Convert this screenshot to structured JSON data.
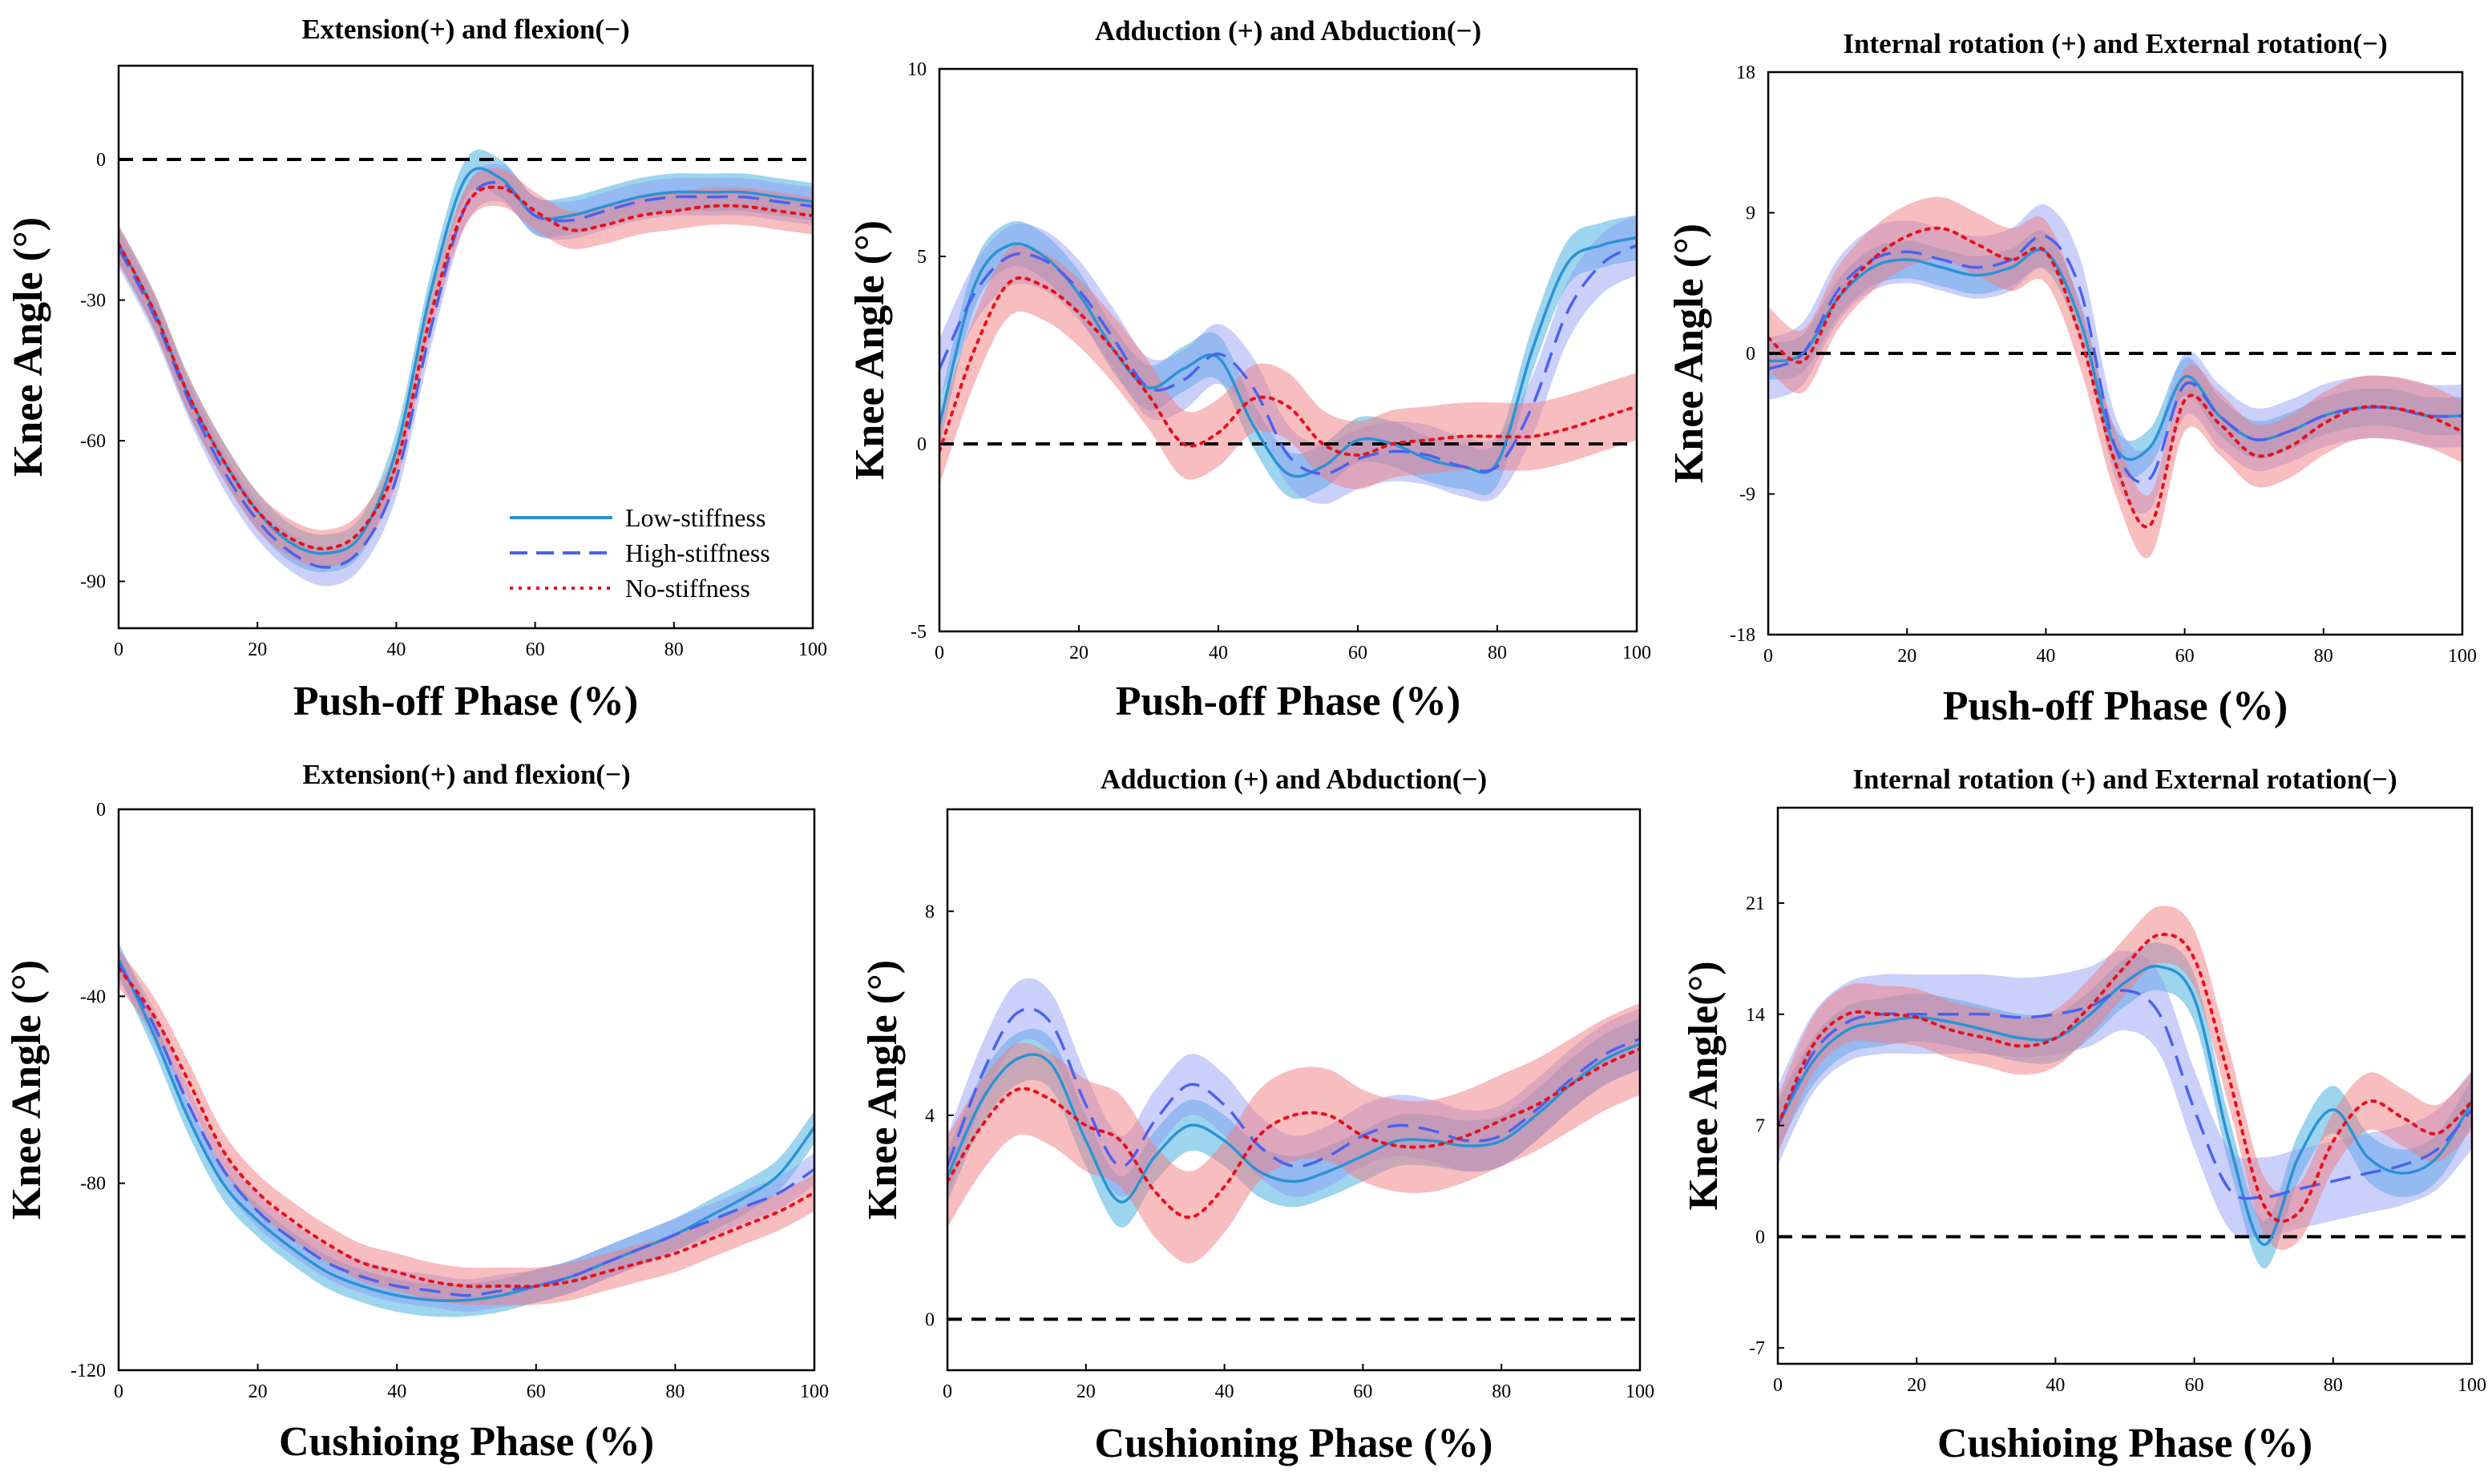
{
  "colors": {
    "low": "#2a93d5",
    "low_band": "#4fb2e0",
    "high": "#4a62f0",
    "high_band": "#8a96f5",
    "no": "#e8101a",
    "no_band": "#f27b80",
    "zero_line": "#000000"
  },
  "legend": {
    "entries": [
      {
        "label": "Low-stiffness",
        "style": "solid",
        "color": "#2a93d5"
      },
      {
        "label": "High-stiffness",
        "style": "dashed",
        "color": "#4a62f0"
      },
      {
        "label": "No-stiffness",
        "style": "dotted",
        "color": "#e8101a"
      }
    ]
  },
  "chart_data": [
    {
      "type": "line",
      "title": "Extension(+) and flexion(−)",
      "xlabel": "Push-off Phase (%)",
      "ylabel": "Knee Angle (°)",
      "xlim": [
        0,
        100
      ],
      "ylim": [
        -100,
        20
      ],
      "xticks": [
        0,
        20,
        40,
        60,
        80,
        100
      ],
      "yticks": [
        0,
        -30,
        -60,
        -90
      ],
      "ytick_labels": [
        "0",
        "-30",
        "-60",
        "-90"
      ],
      "zero_line": 0,
      "legend": true,
      "series": [
        {
          "name": "Low-stiffness",
          "band": 4,
          "x": [
            0,
            5,
            10,
            15,
            20,
            25,
            30,
            35,
            40,
            45,
            50,
            55,
            60,
            65,
            70,
            75,
            80,
            85,
            90,
            95,
            100
          ],
          "values": [
            -18,
            -32,
            -50,
            -64,
            -75,
            -82,
            -84,
            -80,
            -62,
            -28,
            -4,
            -4,
            -12,
            -12,
            -10,
            -8,
            -7,
            -7,
            -7,
            -8,
            -9
          ]
        },
        {
          "name": "High-stiffness",
          "band": 4,
          "x": [
            0,
            5,
            10,
            15,
            20,
            25,
            30,
            35,
            40,
            45,
            50,
            55,
            60,
            65,
            70,
            75,
            80,
            85,
            90,
            95,
            100
          ],
          "values": [
            -19,
            -33,
            -51,
            -66,
            -77,
            -84,
            -87,
            -83,
            -68,
            -36,
            -10,
            -5,
            -12,
            -13,
            -11,
            -9,
            -8,
            -8,
            -8,
            -9,
            -10
          ]
        },
        {
          "name": "No-stiffness",
          "band": 4,
          "x": [
            0,
            5,
            10,
            15,
            20,
            25,
            30,
            35,
            40,
            45,
            50,
            55,
            60,
            65,
            70,
            75,
            80,
            85,
            90,
            95,
            100
          ],
          "values": [
            -18,
            -32,
            -50,
            -64,
            -75,
            -81,
            -83,
            -79,
            -65,
            -33,
            -10,
            -6,
            -11,
            -15,
            -14,
            -12,
            -11,
            -10,
            -10,
            -11,
            -12
          ]
        }
      ]
    },
    {
      "type": "line",
      "title": "Adduction (+) and Abduction(−)",
      "xlabel": "Push-off Phase (%)",
      "ylabel": "Knee Angle (°)",
      "xlim": [
        0,
        100
      ],
      "ylim": [
        -5,
        10
      ],
      "xticks": [
        0,
        20,
        40,
        60,
        80,
        100
      ],
      "yticks": [
        10,
        5,
        0,
        -5
      ],
      "ytick_labels": [
        "10",
        "5",
        "0",
        "-5"
      ],
      "zero_line": 0,
      "legend": false,
      "series": [
        {
          "name": "Low-stiffness",
          "band": 0.6,
          "x": [
            0,
            5,
            10,
            15,
            20,
            25,
            30,
            35,
            40,
            45,
            50,
            55,
            60,
            65,
            70,
            75,
            80,
            85,
            90,
            95,
            100
          ],
          "values": [
            0.5,
            4.2,
            5.3,
            5.0,
            4.0,
            2.5,
            1.5,
            2.0,
            2.3,
            0.5,
            -0.8,
            -0.6,
            0.1,
            0.0,
            -0.4,
            -0.6,
            -0.5,
            2.5,
            4.8,
            5.3,
            5.5
          ]
        },
        {
          "name": "High-stiffness",
          "band": 0.8,
          "x": [
            0,
            5,
            10,
            15,
            20,
            25,
            30,
            35,
            40,
            45,
            50,
            55,
            60,
            65,
            70,
            75,
            80,
            85,
            90,
            95,
            100
          ],
          "values": [
            2.0,
            4.0,
            5.0,
            4.9,
            4.1,
            2.8,
            1.5,
            1.7,
            2.4,
            1.5,
            -0.3,
            -0.8,
            -0.4,
            -0.2,
            -0.3,
            -0.6,
            -0.6,
            1.0,
            3.5,
            4.8,
            5.3
          ]
        },
        {
          "name": "No-stiffness",
          "band": 0.9,
          "x": [
            0,
            5,
            10,
            15,
            20,
            25,
            30,
            35,
            40,
            45,
            50,
            55,
            60,
            65,
            70,
            75,
            80,
            85,
            90,
            95,
            100
          ],
          "values": [
            -0.2,
            2.5,
            4.3,
            4.2,
            3.5,
            2.5,
            1.3,
            0.0,
            0.3,
            1.2,
            1.0,
            0.0,
            -0.3,
            0.0,
            0.1,
            0.2,
            0.2,
            0.2,
            0.4,
            0.7,
            1.0
          ]
        }
      ]
    },
    {
      "type": "line",
      "title": "Internal rotation (+) and External rotation(−)",
      "xlabel": "Push-off Phase (%)",
      "ylabel": "Knee Angle (°)",
      "xlim": [
        0,
        100
      ],
      "ylim": [
        -18,
        18
      ],
      "xticks": [
        0,
        20,
        40,
        60,
        80,
        100
      ],
      "yticks": [
        18,
        9,
        0,
        -9,
        -18
      ],
      "ytick_labels": [
        "18",
        "9",
        "0",
        "-9",
        "-18"
      ],
      "zero_line": 0,
      "legend": false,
      "series": [
        {
          "name": "Low-stiffness",
          "band": 1.2,
          "x": [
            0,
            5,
            10,
            15,
            20,
            25,
            30,
            35,
            40,
            45,
            50,
            55,
            60,
            65,
            70,
            75,
            80,
            85,
            90,
            95,
            100
          ],
          "values": [
            -0.5,
            0.0,
            3.5,
            5.5,
            6.0,
            5.5,
            5.0,
            5.5,
            6.5,
            2.0,
            -6.0,
            -6.0,
            -1.5,
            -4.0,
            -5.5,
            -5.0,
            -4.0,
            -3.5,
            -3.5,
            -4.0,
            -4.0
          ]
        },
        {
          "name": "High-stiffness",
          "band": 2.0,
          "x": [
            0,
            5,
            10,
            15,
            20,
            25,
            30,
            35,
            40,
            45,
            50,
            55,
            60,
            65,
            70,
            75,
            80,
            85,
            90,
            95,
            100
          ],
          "values": [
            -1.0,
            0.0,
            4.0,
            6.0,
            6.5,
            6.0,
            5.5,
            6.0,
            7.5,
            4.0,
            -6.0,
            -8.0,
            -2.0,
            -4.0,
            -5.5,
            -5.0,
            -4.0,
            -3.5,
            -3.5,
            -4.0,
            -4.0
          ]
        },
        {
          "name": "No-stiffness",
          "band": 2.0,
          "x": [
            0,
            5,
            10,
            15,
            20,
            25,
            30,
            35,
            40,
            45,
            50,
            55,
            60,
            65,
            70,
            75,
            80,
            85,
            90,
            95,
            100
          ],
          "values": [
            1.0,
            -0.5,
            3.5,
            6.0,
            7.5,
            8.0,
            7.0,
            6.0,
            6.5,
            1.0,
            -7.0,
            -11.0,
            -3.0,
            -4.5,
            -6.5,
            -6.0,
            -4.5,
            -3.5,
            -3.5,
            -4.0,
            -5.0
          ]
        }
      ]
    },
    {
      "type": "line",
      "title": "Extension(+) and flexion(−)",
      "xlabel": "Cushioing Phase (%)",
      "ylabel": "Knee Angle (°)",
      "xlim": [
        0,
        100
      ],
      "ylim": [
        -120,
        0
      ],
      "xticks": [
        0,
        20,
        40,
        60,
        80,
        100
      ],
      "yticks": [
        0,
        -40,
        -80,
        -120
      ],
      "ytick_labels": [
        "0",
        "-40",
        "-80",
        "-120"
      ],
      "zero_line": null,
      "legend": false,
      "series": [
        {
          "name": "Low-stiffness",
          "band": 3.5,
          "x": [
            0,
            5,
            10,
            15,
            20,
            25,
            30,
            35,
            40,
            45,
            50,
            55,
            60,
            65,
            70,
            75,
            80,
            85,
            90,
            95,
            100
          ],
          "values": [
            -32,
            -48,
            -66,
            -80,
            -88,
            -94,
            -99,
            -102,
            -104,
            -105,
            -105,
            -104,
            -102,
            -100,
            -97,
            -94,
            -91,
            -87,
            -83,
            -78,
            -68
          ]
        },
        {
          "name": "High-stiffness",
          "band": 3.5,
          "x": [
            0,
            5,
            10,
            15,
            20,
            25,
            30,
            35,
            40,
            45,
            50,
            55,
            60,
            65,
            70,
            75,
            80,
            85,
            90,
            95,
            100
          ],
          "values": [
            -33,
            -46,
            -63,
            -77,
            -86,
            -92,
            -97,
            -100,
            -102,
            -103,
            -104,
            -103,
            -102,
            -100,
            -97,
            -94,
            -91,
            -88,
            -85,
            -82,
            -77
          ]
        },
        {
          "name": "No-stiffness",
          "band": 4,
          "x": [
            0,
            5,
            10,
            15,
            20,
            25,
            30,
            35,
            40,
            45,
            50,
            55,
            60,
            65,
            70,
            75,
            80,
            85,
            90,
            95,
            100
          ],
          "values": [
            -34,
            -44,
            -58,
            -73,
            -82,
            -88,
            -93,
            -97,
            -99,
            -101,
            -102,
            -102,
            -102,
            -101,
            -99,
            -97,
            -95,
            -92,
            -89,
            -86,
            -82
          ]
        }
      ]
    },
    {
      "type": "line",
      "title": "Adduction (+) and Abduction(−)",
      "xlabel": "Cushioning Phase (%)",
      "ylabel": "Knee Angle (°)",
      "xlim": [
        0,
        100
      ],
      "ylim": [
        -1,
        10
      ],
      "xticks": [
        0,
        20,
        40,
        60,
        80,
        100
      ],
      "yticks": [
        8,
        4,
        0
      ],
      "ytick_labels": [
        "8",
        "4",
        "0"
      ],
      "zero_line": 0,
      "legend": false,
      "series": [
        {
          "name": "Low-stiffness",
          "band": 0.5,
          "x": [
            0,
            5,
            10,
            15,
            20,
            25,
            30,
            35,
            40,
            45,
            50,
            55,
            60,
            65,
            70,
            75,
            80,
            85,
            90,
            95,
            100
          ],
          "values": [
            2.8,
            4.3,
            5.1,
            5.0,
            3.5,
            2.3,
            3.2,
            3.8,
            3.5,
            2.9,
            2.7,
            2.9,
            3.2,
            3.5,
            3.5,
            3.4,
            3.5,
            4.0,
            4.6,
            5.1,
            5.4
          ]
        },
        {
          "name": "High-stiffness",
          "band": 0.6,
          "x": [
            0,
            5,
            10,
            15,
            20,
            25,
            30,
            35,
            40,
            45,
            50,
            55,
            60,
            65,
            70,
            75,
            80,
            85,
            90,
            95,
            100
          ],
          "values": [
            3.0,
            4.8,
            6.0,
            5.8,
            4.2,
            3.0,
            3.9,
            4.6,
            4.2,
            3.4,
            3.0,
            3.2,
            3.6,
            3.8,
            3.7,
            3.5,
            3.6,
            4.1,
            4.7,
            5.2,
            5.5
          ]
        },
        {
          "name": "No-stiffness",
          "band": 0.9,
          "x": [
            0,
            5,
            10,
            15,
            20,
            25,
            30,
            35,
            40,
            45,
            50,
            55,
            60,
            65,
            70,
            75,
            80,
            85,
            90,
            95,
            100
          ],
          "values": [
            2.7,
            3.8,
            4.5,
            4.3,
            3.8,
            3.5,
            2.5,
            2.0,
            2.6,
            3.6,
            4.0,
            4.0,
            3.6,
            3.4,
            3.4,
            3.6,
            3.9,
            4.2,
            4.6,
            5.0,
            5.3
          ]
        }
      ]
    },
    {
      "type": "line",
      "title": "Internal rotation (+) and External rotation(−)",
      "xlabel": "Cushioing Phase (%)",
      "ylabel": "Knee Angle(°)",
      "xlim": [
        0,
        100
      ],
      "ylim": [
        -8,
        27
      ],
      "xticks": [
        0,
        20,
        40,
        60,
        80,
        100
      ],
      "yticks": [
        21,
        14,
        7,
        0,
        -7
      ],
      "ytick_labels": [
        "21",
        "14",
        "7",
        "0",
        "-7"
      ],
      "zero_line": 0,
      "legend": false,
      "series": [
        {
          "name": "Low-stiffness",
          "band": 1.5,
          "x": [
            0,
            5,
            10,
            15,
            20,
            25,
            30,
            35,
            40,
            45,
            50,
            55,
            60,
            65,
            70,
            75,
            80,
            85,
            90,
            95,
            100
          ],
          "values": [
            7.0,
            11.0,
            13.0,
            13.5,
            13.8,
            13.5,
            13.0,
            12.5,
            12.5,
            14.0,
            16.0,
            17.0,
            15.0,
            6.0,
            -0.5,
            5.0,
            8.0,
            5.0,
            4.0,
            5.0,
            8.5
          ]
        },
        {
          "name": "High-stiffness",
          "band": 2.5,
          "x": [
            0,
            5,
            10,
            15,
            20,
            25,
            30,
            35,
            40,
            45,
            50,
            55,
            60,
            65,
            70,
            75,
            80,
            85,
            90,
            95,
            100
          ],
          "values": [
            7.0,
            11.5,
            13.5,
            14.0,
            14.0,
            14.0,
            14.0,
            13.8,
            14.0,
            14.5,
            15.5,
            14.0,
            8.0,
            3.0,
            2.5,
            3.0,
            3.5,
            4.0,
            4.5,
            5.5,
            8.0
          ]
        },
        {
          "name": "No-stiffness",
          "band": 1.8,
          "x": [
            0,
            5,
            10,
            15,
            20,
            25,
            30,
            35,
            40,
            45,
            50,
            55,
            60,
            65,
            70,
            75,
            80,
            85,
            90,
            95,
            100
          ],
          "values": [
            7.0,
            12.0,
            14.0,
            14.0,
            13.8,
            13.0,
            12.5,
            12.0,
            12.5,
            14.5,
            17.0,
            19.0,
            17.5,
            10.0,
            2.0,
            1.5,
            6.0,
            8.5,
            7.5,
            6.5,
            8.5
          ]
        }
      ]
    }
  ]
}
